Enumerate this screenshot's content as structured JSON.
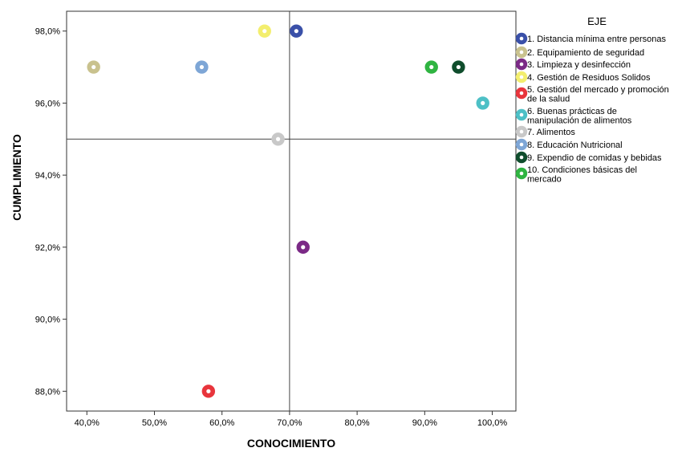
{
  "chart_data": {
    "type": "scatter",
    "xlabel": "CONOCIMIENTO",
    "ylabel": "CUMPLIMIENTO",
    "xlim": [
      0.37,
      1.035
    ],
    "ylim": [
      0.8745,
      0.9855
    ],
    "x_ticks": [
      0.4,
      0.5,
      0.6,
      0.7,
      0.8,
      0.9,
      1.0
    ],
    "x_tick_labels": [
      "40,0%",
      "50,0%",
      "60,0%",
      "70,0%",
      "80,0%",
      "90,0%",
      "100,0%"
    ],
    "y_ticks": [
      0.88,
      0.9,
      0.92,
      0.94,
      0.96,
      0.98
    ],
    "y_tick_labels": [
      "88,0%",
      "90,0%",
      "92,0%",
      "94,0%",
      "96,0%",
      "98,0%"
    ],
    "reference_lines": {
      "x": 0.7,
      "y": 0.95
    },
    "grid": false,
    "legend_title": "EJE",
    "legend_position": "right",
    "series": [
      {
        "name": "1. Distancia mínima entre personas",
        "lines": [
          "1. Distancia mínima entre personas"
        ],
        "color": "#3a50a8",
        "points": [
          [
            0.71,
            0.98
          ]
        ]
      },
      {
        "name": "2. Equipamiento de seguridad",
        "lines": [
          "2. Equipamiento de seguridad"
        ],
        "color": "#c9c28e",
        "points": [
          [
            0.41,
            0.97
          ]
        ]
      },
      {
        "name": "3. Limpieza y desinfección",
        "lines": [
          "3. Limpieza y desinfección"
        ],
        "color": "#7b2a86",
        "points": [
          [
            0.72,
            0.92
          ]
        ]
      },
      {
        "name": "4. Gestión de Residuos Solidos",
        "lines": [
          "4. Gestión de Residuos Solidos"
        ],
        "color": "#f3ee6e",
        "points": [
          [
            0.663,
            0.98
          ]
        ]
      },
      {
        "name": "5. Gestión del mercado y promoción de la salud",
        "lines": [
          "5. Gestión del mercado y promoción",
          "de la salud"
        ],
        "color": "#e8353c",
        "points": [
          [
            0.58,
            0.88
          ]
        ]
      },
      {
        "name": "6. Buenas prácticas de manipulación de alimentos",
        "lines": [
          "6. Buenas prácticas de",
          "manipulación de alimentos"
        ],
        "color": "#4dc0c6",
        "points": [
          [
            0.986,
            0.96
          ]
        ]
      },
      {
        "name": "7. Alimentos",
        "lines": [
          "7. Alimentos"
        ],
        "color": "#c8c8c8",
        "points": [
          [
            0.683,
            0.95
          ]
        ]
      },
      {
        "name": "8. Educación Nutricional",
        "lines": [
          "8. Educación Nutricional"
        ],
        "color": "#7ea6d6",
        "points": [
          [
            0.57,
            0.97
          ]
        ]
      },
      {
        "name": "9. Expendio de comidas y bebidas",
        "lines": [
          "9. Expendio de comidas y bebidas"
        ],
        "color": "#0f4d2c",
        "points": [
          [
            0.95,
            0.97
          ]
        ]
      },
      {
        "name": "10. Condiciones básicas del mercado",
        "lines": [
          "10. Condiciones básicas del",
          "mercado"
        ],
        "color": "#2fb441",
        "points": [
          [
            0.91,
            0.97
          ]
        ]
      }
    ]
  }
}
